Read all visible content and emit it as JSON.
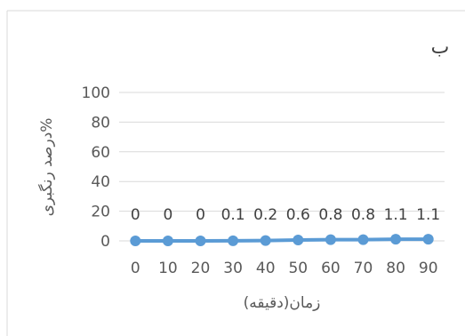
{
  "chart_data": {
    "type": "line",
    "panel_label": "ب",
    "title": "",
    "xlabel": "زمان(دقیقه)",
    "ylabel": "درصد رنگبری%",
    "categories": [
      "0",
      "10",
      "20",
      "30",
      "40",
      "50",
      "60",
      "70",
      "80",
      "90"
    ],
    "x": [
      0,
      10,
      20,
      30,
      40,
      50,
      60,
      70,
      80,
      90
    ],
    "series": [
      {
        "values": [
          0,
          0,
          0,
          0.1,
          0.2,
          0.6,
          0.8,
          0.8,
          1.1,
          1.1
        ],
        "data_labels": [
          "0",
          "0",
          "0",
          "0.1",
          "0.2",
          "0.6",
          "0.8",
          "0.8",
          "1.1",
          "1.1"
        ],
        "color": "#5b9bd5",
        "marker": "circle"
      }
    ],
    "ylim": [
      0,
      100
    ],
    "yticks": [
      0,
      20,
      40,
      60,
      80,
      100
    ],
    "grid": true,
    "legend": "none"
  }
}
